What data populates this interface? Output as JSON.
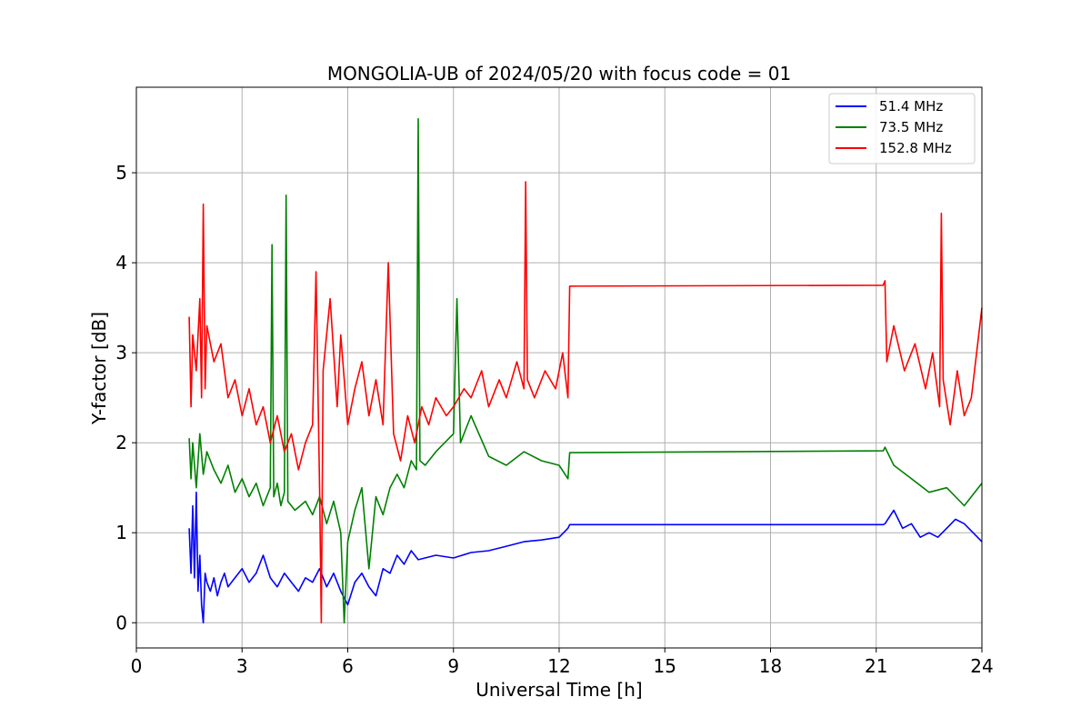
{
  "chart_data": {
    "type": "line",
    "title": "MONGOLIA-UB of 2024/05/20 with focus code = 01",
    "xlabel": "Universal Time [h]",
    "ylabel": "Y-factor [dB]",
    "xlim": [
      0,
      24
    ],
    "ylim": [
      -0.28,
      5.95
    ],
    "xticks": [
      0,
      3,
      6,
      9,
      12,
      15,
      18,
      21,
      24
    ],
    "xtick_labels": [
      "0",
      "3",
      "6",
      "9",
      "12",
      "15",
      "18",
      "21",
      "24"
    ],
    "yticks": [
      0,
      1,
      2,
      3,
      4,
      5
    ],
    "ytick_labels": [
      "0",
      "1",
      "2",
      "3",
      "4",
      "5"
    ],
    "grid": true,
    "legend_position": "top-right",
    "legend_labels": [
      "  51.4 MHz",
      "  73.5 MHz",
      "152.8 MHz"
    ],
    "series": [
      {
        "name": "  51.4 MHz",
        "color": "#0000ff",
        "x": [
          1.5,
          1.55,
          1.6,
          1.65,
          1.7,
          1.75,
          1.8,
          1.85,
          1.9,
          1.95,
          2.0,
          2.1,
          2.2,
          2.3,
          2.4,
          2.5,
          2.6,
          2.8,
          3.0,
          3.2,
          3.4,
          3.6,
          3.8,
          4.0,
          4.2,
          4.4,
          4.6,
          4.8,
          5.0,
          5.2,
          5.4,
          5.6,
          5.8,
          6.0,
          6.2,
          6.4,
          6.6,
          6.8,
          7.0,
          7.2,
          7.4,
          7.6,
          7.8,
          8.0,
          8.5,
          9.0,
          9.5,
          10.0,
          10.5,
          11.0,
          11.5,
          12.0,
          12.25,
          12.3,
          21.2,
          21.25,
          21.5,
          21.75,
          22.0,
          22.25,
          22.5,
          22.75,
          23.0,
          23.25,
          23.5,
          23.75,
          24.0
        ],
        "values": [
          1.05,
          0.55,
          1.3,
          0.5,
          1.45,
          0.35,
          0.75,
          0.2,
          0.0,
          0.55,
          0.45,
          0.35,
          0.5,
          0.3,
          0.45,
          0.55,
          0.4,
          0.5,
          0.6,
          0.45,
          0.55,
          0.75,
          0.5,
          0.4,
          0.55,
          0.45,
          0.35,
          0.5,
          0.45,
          0.6,
          0.4,
          0.55,
          0.35,
          0.2,
          0.45,
          0.55,
          0.4,
          0.3,
          0.6,
          0.55,
          0.75,
          0.65,
          0.8,
          0.7,
          0.75,
          0.72,
          0.78,
          0.8,
          0.85,
          0.9,
          0.92,
          0.95,
          1.05,
          1.09,
          1.09,
          1.1,
          1.25,
          1.05,
          1.1,
          0.95,
          1.0,
          0.95,
          1.05,
          1.15,
          1.1,
          1.0,
          0.9
        ]
      },
      {
        "name": "  73.5 MHz",
        "color": "#008000",
        "x": [
          1.5,
          1.55,
          1.6,
          1.7,
          1.8,
          1.9,
          2.0,
          2.2,
          2.4,
          2.6,
          2.8,
          3.0,
          3.2,
          3.4,
          3.6,
          3.8,
          3.85,
          3.9,
          4.0,
          4.1,
          4.2,
          4.25,
          4.3,
          4.5,
          4.8,
          5.0,
          5.2,
          5.4,
          5.6,
          5.8,
          5.9,
          6.0,
          6.2,
          6.4,
          6.6,
          6.8,
          7.0,
          7.2,
          7.4,
          7.6,
          7.8,
          7.95,
          8.0,
          8.05,
          8.2,
          8.5,
          9.0,
          9.1,
          9.2,
          9.5,
          10.0,
          10.5,
          11.0,
          11.5,
          12.0,
          12.25,
          12.3,
          21.2,
          21.25,
          21.5,
          22.0,
          22.5,
          23.0,
          23.5,
          24.0
        ],
        "values": [
          2.05,
          1.6,
          2.0,
          1.5,
          2.1,
          1.65,
          1.9,
          1.7,
          1.55,
          1.75,
          1.45,
          1.6,
          1.4,
          1.55,
          1.3,
          1.5,
          4.2,
          1.4,
          1.55,
          1.3,
          1.45,
          4.75,
          1.35,
          1.25,
          1.35,
          1.2,
          1.4,
          1.1,
          1.35,
          1.0,
          0.0,
          0.9,
          1.25,
          1.5,
          0.6,
          1.4,
          1.2,
          1.5,
          1.65,
          1.5,
          1.8,
          1.7,
          5.6,
          1.8,
          1.75,
          1.9,
          2.1,
          3.6,
          2.0,
          2.3,
          1.85,
          1.75,
          1.9,
          1.8,
          1.75,
          1.6,
          1.89,
          1.91,
          1.95,
          1.75,
          1.6,
          1.45,
          1.5,
          1.3,
          1.55
        ]
      },
      {
        "name": "152.8 MHz",
        "color": "#ff0000",
        "x": [
          1.5,
          1.55,
          1.6,
          1.7,
          1.8,
          1.85,
          1.9,
          1.95,
          2.0,
          2.2,
          2.4,
          2.6,
          2.8,
          3.0,
          3.2,
          3.4,
          3.6,
          3.8,
          4.0,
          4.2,
          4.4,
          4.6,
          4.8,
          5.0,
          5.1,
          5.2,
          5.25,
          5.3,
          5.5,
          5.7,
          5.8,
          6.0,
          6.2,
          6.4,
          6.6,
          6.8,
          7.0,
          7.15,
          7.3,
          7.5,
          7.7,
          7.9,
          8.1,
          8.3,
          8.5,
          8.8,
          9.0,
          9.3,
          9.5,
          9.8,
          10.0,
          10.3,
          10.5,
          10.8,
          11.0,
          11.05,
          11.1,
          11.3,
          11.6,
          11.9,
          12.1,
          12.25,
          12.3,
          21.2,
          21.25,
          21.3,
          21.5,
          21.8,
          22.1,
          22.4,
          22.6,
          22.8,
          22.85,
          22.9,
          23.1,
          23.3,
          23.5,
          23.7,
          24.0
        ],
        "values": [
          3.4,
          2.4,
          3.2,
          2.8,
          3.6,
          2.5,
          4.65,
          2.6,
          3.3,
          2.9,
          3.1,
          2.5,
          2.7,
          2.3,
          2.6,
          2.2,
          2.4,
          2.0,
          2.3,
          1.9,
          2.1,
          1.7,
          2.0,
          2.2,
          3.9,
          1.5,
          0.0,
          2.8,
          3.6,
          2.4,
          3.2,
          2.2,
          2.6,
          2.9,
          2.3,
          2.7,
          2.2,
          4.0,
          2.1,
          1.8,
          2.3,
          2.0,
          2.4,
          2.2,
          2.5,
          2.3,
          2.4,
          2.6,
          2.5,
          2.8,
          2.4,
          2.7,
          2.5,
          2.9,
          2.6,
          4.9,
          2.7,
          2.5,
          2.8,
          2.6,
          3.0,
          2.5,
          3.74,
          3.75,
          3.8,
          2.9,
          3.3,
          2.8,
          3.1,
          2.6,
          3.0,
          2.4,
          4.55,
          2.7,
          2.2,
          2.8,
          2.3,
          2.5,
          3.5
        ]
      }
    ]
  }
}
